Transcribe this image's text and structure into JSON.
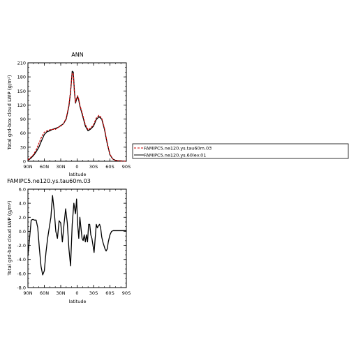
{
  "figure": {
    "legend": {
      "entries": [
        {
          "name": "FAMIPC5.ne120.ys.tau60m.03",
          "color": "#cc0000",
          "dash": true
        },
        {
          "name": "FAMIPC5.ne120.ys.60lev.01",
          "color": "#000000",
          "dash": false
        }
      ]
    }
  },
  "chart_data": [
    {
      "type": "line",
      "title": "ANN",
      "xlabel": "latitude",
      "ylabel": "Total grd-box cloud LWP (g/m²)",
      "xlim": [
        90,
        -90
      ],
      "ylim": [
        0,
        210
      ],
      "xticks": [
        90,
        60,
        30,
        0,
        -30,
        -60,
        -90
      ],
      "xticklabels": [
        "90N",
        "60N",
        "30N",
        "0",
        "30S",
        "60S",
        "90S"
      ],
      "yticks": [
        0,
        30,
        60,
        90,
        120,
        150,
        180,
        210
      ],
      "yticklabels": [
        "0",
        "30",
        "60",
        "90",
        "120",
        "150",
        "180",
        "210"
      ],
      "grid": false,
      "series": [
        {
          "name": "FAMIPC5.ne120.ys.tau60m.03",
          "color": "#cc0000",
          "x": [
            90,
            85,
            80,
            75,
            70,
            65,
            60,
            55,
            50,
            45,
            40,
            35,
            30,
            25,
            20,
            15,
            12,
            9,
            7,
            5,
            3,
            1,
            -1,
            -3,
            -5,
            -10,
            -15,
            -20,
            -25,
            -30,
            -35,
            -40,
            -45,
            -50,
            -55,
            -60,
            -65,
            -70,
            -75,
            -80,
            -90
          ],
          "y": [
            3,
            8,
            14,
            24,
            38,
            52,
            62,
            65,
            67,
            68,
            68,
            72,
            75,
            80,
            92,
            120,
            150,
            188,
            186,
            148,
            126,
            134,
            140,
            132,
            120,
            100,
            78,
            67,
            71,
            78,
            92,
            98,
            92,
            70,
            40,
            15,
            5,
            2,
            1,
            0.5,
            0
          ]
        },
        {
          "name": "FAMIPC5.ne120.ys.60lev.01",
          "color": "#000000",
          "x": [
            90,
            85,
            80,
            75,
            70,
            65,
            60,
            55,
            50,
            45,
            40,
            35,
            30,
            25,
            20,
            15,
            12,
            9,
            7,
            5,
            3,
            1,
            -1,
            -3,
            -5,
            -10,
            -15,
            -20,
            -25,
            -30,
            -35,
            -40,
            -45,
            -50,
            -55,
            -60,
            -65,
            -70,
            -75,
            -80,
            -90
          ],
          "y": [
            2,
            6,
            12,
            20,
            30,
            44,
            57,
            63,
            65,
            68,
            70,
            72,
            76,
            80,
            90,
            118,
            148,
            192,
            190,
            150,
            124,
            132,
            138,
            130,
            118,
            97,
            75,
            65,
            69,
            75,
            89,
            95,
            90,
            68,
            38,
            14,
            5,
            2,
            1,
            0.5,
            0
          ]
        }
      ]
    },
    {
      "type": "line",
      "title": "FAMIPC5.ne120.ys.tau60m.03",
      "xlabel": "latitude",
      "ylabel": "Total grd-box cloud LWP (g/m²)",
      "xlim": [
        90,
        -90
      ],
      "ylim": [
        -8,
        6
      ],
      "xticks": [
        90,
        60,
        30,
        0,
        -30,
        -60,
        -90
      ],
      "xticklabels": [
        "90N",
        "60N",
        "30N",
        "0",
        "30S",
        "60S",
        "90S"
      ],
      "yticks": [
        -8,
        -6,
        -4,
        -2,
        0,
        2,
        4,
        6
      ],
      "yticklabels": [
        "-8.0",
        "-6.0",
        "-4.0",
        "-2.0",
        "0.0",
        "2.0",
        "4.0",
        "6.0"
      ],
      "grid": false,
      "series": [
        {
          "name": "",
          "color": "#000000",
          "x": [
            90,
            87,
            84,
            81,
            78,
            75,
            72,
            69,
            66,
            63,
            60,
            57,
            54,
            51,
            48,
            45,
            42,
            39,
            36,
            33,
            30,
            27,
            24,
            21,
            18,
            15,
            12,
            9,
            6,
            3,
            1,
            -1,
            -3,
            -5,
            -7,
            -9,
            -11,
            -13,
            -15,
            -17,
            -19,
            -21,
            -23,
            -25,
            -27,
            -29,
            -31,
            -33,
            -35,
            -37,
            -39,
            -41,
            -43,
            -45,
            -47,
            -49,
            -51,
            -53,
            -55,
            -57,
            -60,
            -63,
            -66,
            -70,
            -75,
            -80,
            -85,
            -90
          ],
          "y": [
            -3.5,
            -1.0,
            1.6,
            1.7,
            1.6,
            1.6,
            0.5,
            -2.5,
            -5.0,
            -6.2,
            -5.6,
            -3.0,
            -1.0,
            0.5,
            2.0,
            5.1,
            3.0,
            0.0,
            -1.0,
            1.5,
            1.2,
            -1.5,
            1.0,
            3.2,
            1.2,
            -2.5,
            -4.9,
            1.0,
            4.0,
            2.5,
            4.6,
            1.0,
            -1.0,
            2.0,
            0.5,
            -1.0,
            -1.3,
            -0.5,
            -1.5,
            -0.5,
            -1.5,
            1.0,
            1.0,
            -0.5,
            -1.0,
            -2.0,
            -3.0,
            -1.0,
            1.0,
            0.5,
            0.8,
            1.0,
            0.5,
            -0.8,
            -1.5,
            -2.0,
            -2.5,
            -2.8,
            -2.5,
            -1.5,
            -0.5,
            0.0,
            0.1,
            0.1,
            0.1,
            0.1,
            0.1,
            0.1
          ]
        }
      ]
    }
  ]
}
